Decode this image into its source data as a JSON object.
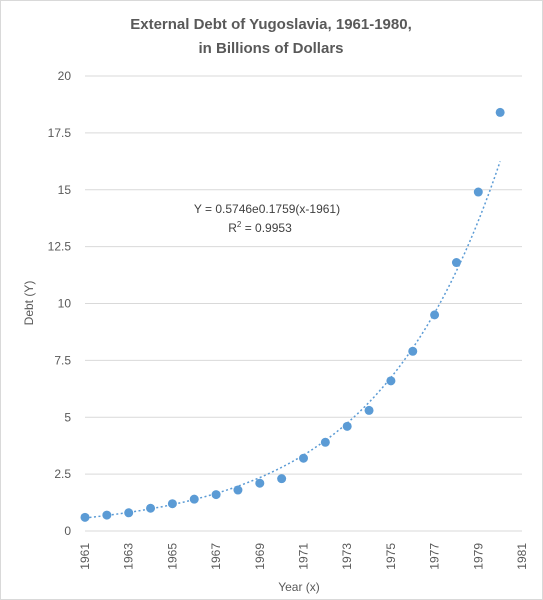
{
  "chart_data": {
    "type": "scatter",
    "title": "External Debt of Yugoslavia, 1961-1980,",
    "subtitle": "in Billions of Dollars",
    "xlabel": "Year (x)",
    "ylabel": "Debt (Y)",
    "xlim": [
      1961,
      1981
    ],
    "ylim": [
      0,
      20
    ],
    "x_ticks": [
      "1961",
      "1963",
      "1965",
      "1967",
      "1969",
      "1971",
      "1973",
      "1975",
      "1977",
      "1979",
      "1981"
    ],
    "y_ticks": [
      "0",
      "2.5",
      "5",
      "7.5",
      "10",
      "12.5",
      "15",
      "17.5",
      "20"
    ],
    "grid": "horizontal",
    "legend": "none",
    "series": [
      {
        "x": [
          1961,
          1962,
          1963,
          1964,
          1965,
          1966,
          1967,
          1968,
          1969,
          1970,
          1971,
          1972,
          1973,
          1974,
          1975,
          1976,
          1977,
          1978,
          1979,
          1980
        ],
        "values": [
          0.6,
          0.7,
          0.8,
          1.0,
          1.2,
          1.4,
          1.6,
          1.8,
          2.1,
          2.3,
          3.2,
          3.9,
          4.6,
          5.3,
          6.6,
          7.9,
          9.5,
          11.8,
          14.9,
          18.4
        ]
      }
    ],
    "trendline": {
      "type": "exponential",
      "a": 0.5746,
      "b": 0.1759,
      "x0": 1961,
      "x_range": [
        1961,
        1980
      ],
      "equation": "Y = 0.5746e0.1759(x-1961)",
      "r_squared_label": "R",
      "r_squared_sup": "2",
      "r_squared_value": " = 0.9953"
    },
    "colors": {
      "points": "#5b9bd5",
      "trendline": "#5b9bd5",
      "grid": "#d9d9d9",
      "text": "#595959"
    }
  }
}
